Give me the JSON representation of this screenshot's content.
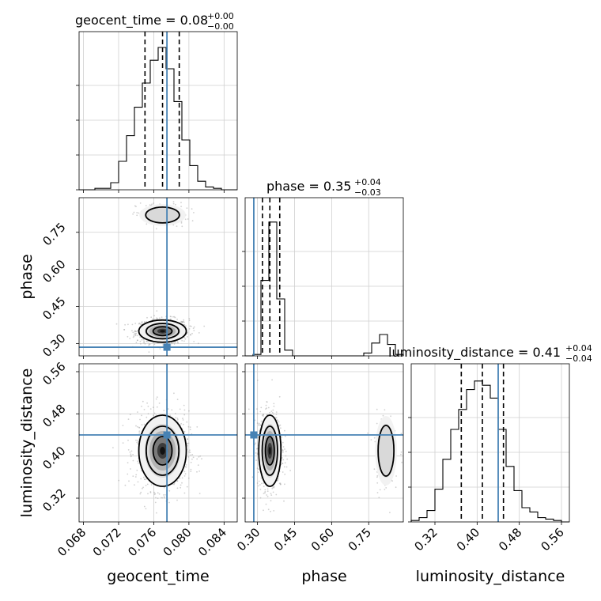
{
  "chart_data": {
    "type": "corner",
    "parameters": [
      "geocent_time",
      "phase",
      "luminosity_distance"
    ],
    "truth": {
      "geocent_time": 0.0775,
      "phase": 0.285,
      "luminosity_distance": 0.44
    },
    "truth_color": "#4682b4",
    "axes": {
      "geocent_time": {
        "range": [
          0.0675,
          0.0855
        ],
        "ticks": [
          0.068,
          0.072,
          0.076,
          0.08,
          0.084
        ],
        "tick_labels": [
          "0.068",
          "0.072",
          "0.076",
          "0.080",
          "0.084"
        ]
      },
      "phase": {
        "range": [
          0.25,
          0.89
        ],
        "ticks": [
          0.3,
          0.45,
          0.6,
          0.75
        ],
        "tick_labels": [
          "0.30",
          "0.45",
          "0.60",
          "0.75"
        ]
      },
      "luminosity_distance": {
        "range": [
          0.275,
          0.575
        ],
        "ticks": [
          0.32,
          0.4,
          0.48,
          0.56
        ],
        "tick_labels": [
          "0.32",
          "0.40",
          "0.48",
          "0.56"
        ]
      }
    },
    "titles": {
      "geocent_time": {
        "main": "geocent_time = 0.08",
        "sup": "+0.00",
        "sub": "−0.00"
      },
      "phase": {
        "main": "phase = 0.35",
        "sup": "+0.04",
        "sub": "−0.03"
      },
      "luminosity_distance": {
        "main": "luminosity_distance = 0.41",
        "sup": "+0.04",
        "sub": "−0.04"
      }
    },
    "quantiles": {
      "geocent_time": [
        0.075,
        0.077,
        0.0789
      ],
      "phase": [
        0.32,
        0.35,
        0.39
      ],
      "luminosity_distance": [
        0.37,
        0.41,
        0.45
      ]
    },
    "hist_geocent_time": {
      "edges": [
        0.0675,
        0.0684,
        0.0693,
        0.0702,
        0.0711,
        0.072,
        0.0729,
        0.0738,
        0.0747,
        0.0756,
        0.0765,
        0.0774,
        0.0783,
        0.0792,
        0.0801,
        0.081,
        0.0819,
        0.0828,
        0.0837,
        0.0846,
        0.0855
      ],
      "counts": [
        0.0,
        0.0,
        0.01,
        0.01,
        0.05,
        0.2,
        0.38,
        0.58,
        0.75,
        0.91,
        1.0,
        0.85,
        0.62,
        0.35,
        0.17,
        0.06,
        0.02,
        0.01,
        0.0,
        0.0
      ]
    },
    "hist_phase": {
      "edges": [
        0.25,
        0.282,
        0.314,
        0.346,
        0.378,
        0.41,
        0.442,
        0.474,
        0.506,
        0.538,
        0.57,
        0.602,
        0.634,
        0.666,
        0.698,
        0.73,
        0.762,
        0.794,
        0.826,
        0.858,
        0.89
      ],
      "counts": [
        0.0,
        0.01,
        0.53,
        0.94,
        0.4,
        0.04,
        0.0,
        0.0,
        0.0,
        0.0,
        0.0,
        0.0,
        0.0,
        0.0,
        0.0,
        0.02,
        0.09,
        0.15,
        0.08,
        0.01
      ]
    },
    "hist_luminosity_distance": {
      "edges": [
        0.275,
        0.29,
        0.305,
        0.32,
        0.335,
        0.35,
        0.365,
        0.38,
        0.395,
        0.41,
        0.425,
        0.44,
        0.455,
        0.47,
        0.485,
        0.5,
        0.515,
        0.53,
        0.545,
        0.56,
        0.575
      ],
      "counts": [
        0.01,
        0.03,
        0.08,
        0.23,
        0.44,
        0.65,
        0.79,
        0.93,
        0.99,
        0.96,
        0.87,
        0.65,
        0.39,
        0.22,
        0.1,
        0.07,
        0.03,
        0.02,
        0.01,
        0.0
      ]
    },
    "posterior_modes": {
      "phase_vs_geocent_time": [
        {
          "x": 0.077,
          "y": 0.35,
          "sx": 0.0012,
          "sy": 0.02,
          "weight": 0.85
        },
        {
          "x": 0.077,
          "y": 0.82,
          "sx": 0.0012,
          "sy": 0.02,
          "weight": 0.15
        }
      ],
      "luminosity_distance_vs_geocent_time": [
        {
          "x": 0.077,
          "y": 0.41,
          "sx": 0.0012,
          "sy": 0.03,
          "weight": 1.0
        }
      ],
      "luminosity_distance_vs_phase": [
        {
          "x": 0.35,
          "y": 0.41,
          "sx": 0.02,
          "sy": 0.03,
          "weight": 0.85
        },
        {
          "x": 0.82,
          "y": 0.41,
          "sx": 0.02,
          "sy": 0.03,
          "weight": 0.15
        }
      ]
    },
    "grid": true
  }
}
